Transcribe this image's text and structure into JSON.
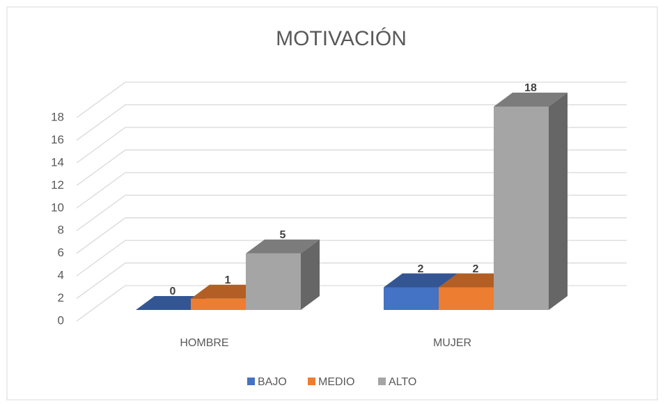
{
  "chart_data": {
    "type": "bar3d",
    "title": "MOTIVACIÓN",
    "categories": [
      "HOMBRE",
      "MUJER"
    ],
    "series": [
      {
        "name": "BAJO",
        "color": "#4472c4",
        "values": [
          0,
          2
        ]
      },
      {
        "name": "MEDIO",
        "color": "#ed7d31",
        "values": [
          1,
          2
        ]
      },
      {
        "name": "ALTO",
        "color": "#a5a5a5",
        "values": [
          5,
          18
        ]
      }
    ],
    "ylim": [
      0,
      18
    ],
    "yticks": [
      0,
      2,
      4,
      6,
      8,
      10,
      12,
      14,
      16,
      18
    ],
    "grid": true,
    "legend": "bottom",
    "data_labels": true
  }
}
